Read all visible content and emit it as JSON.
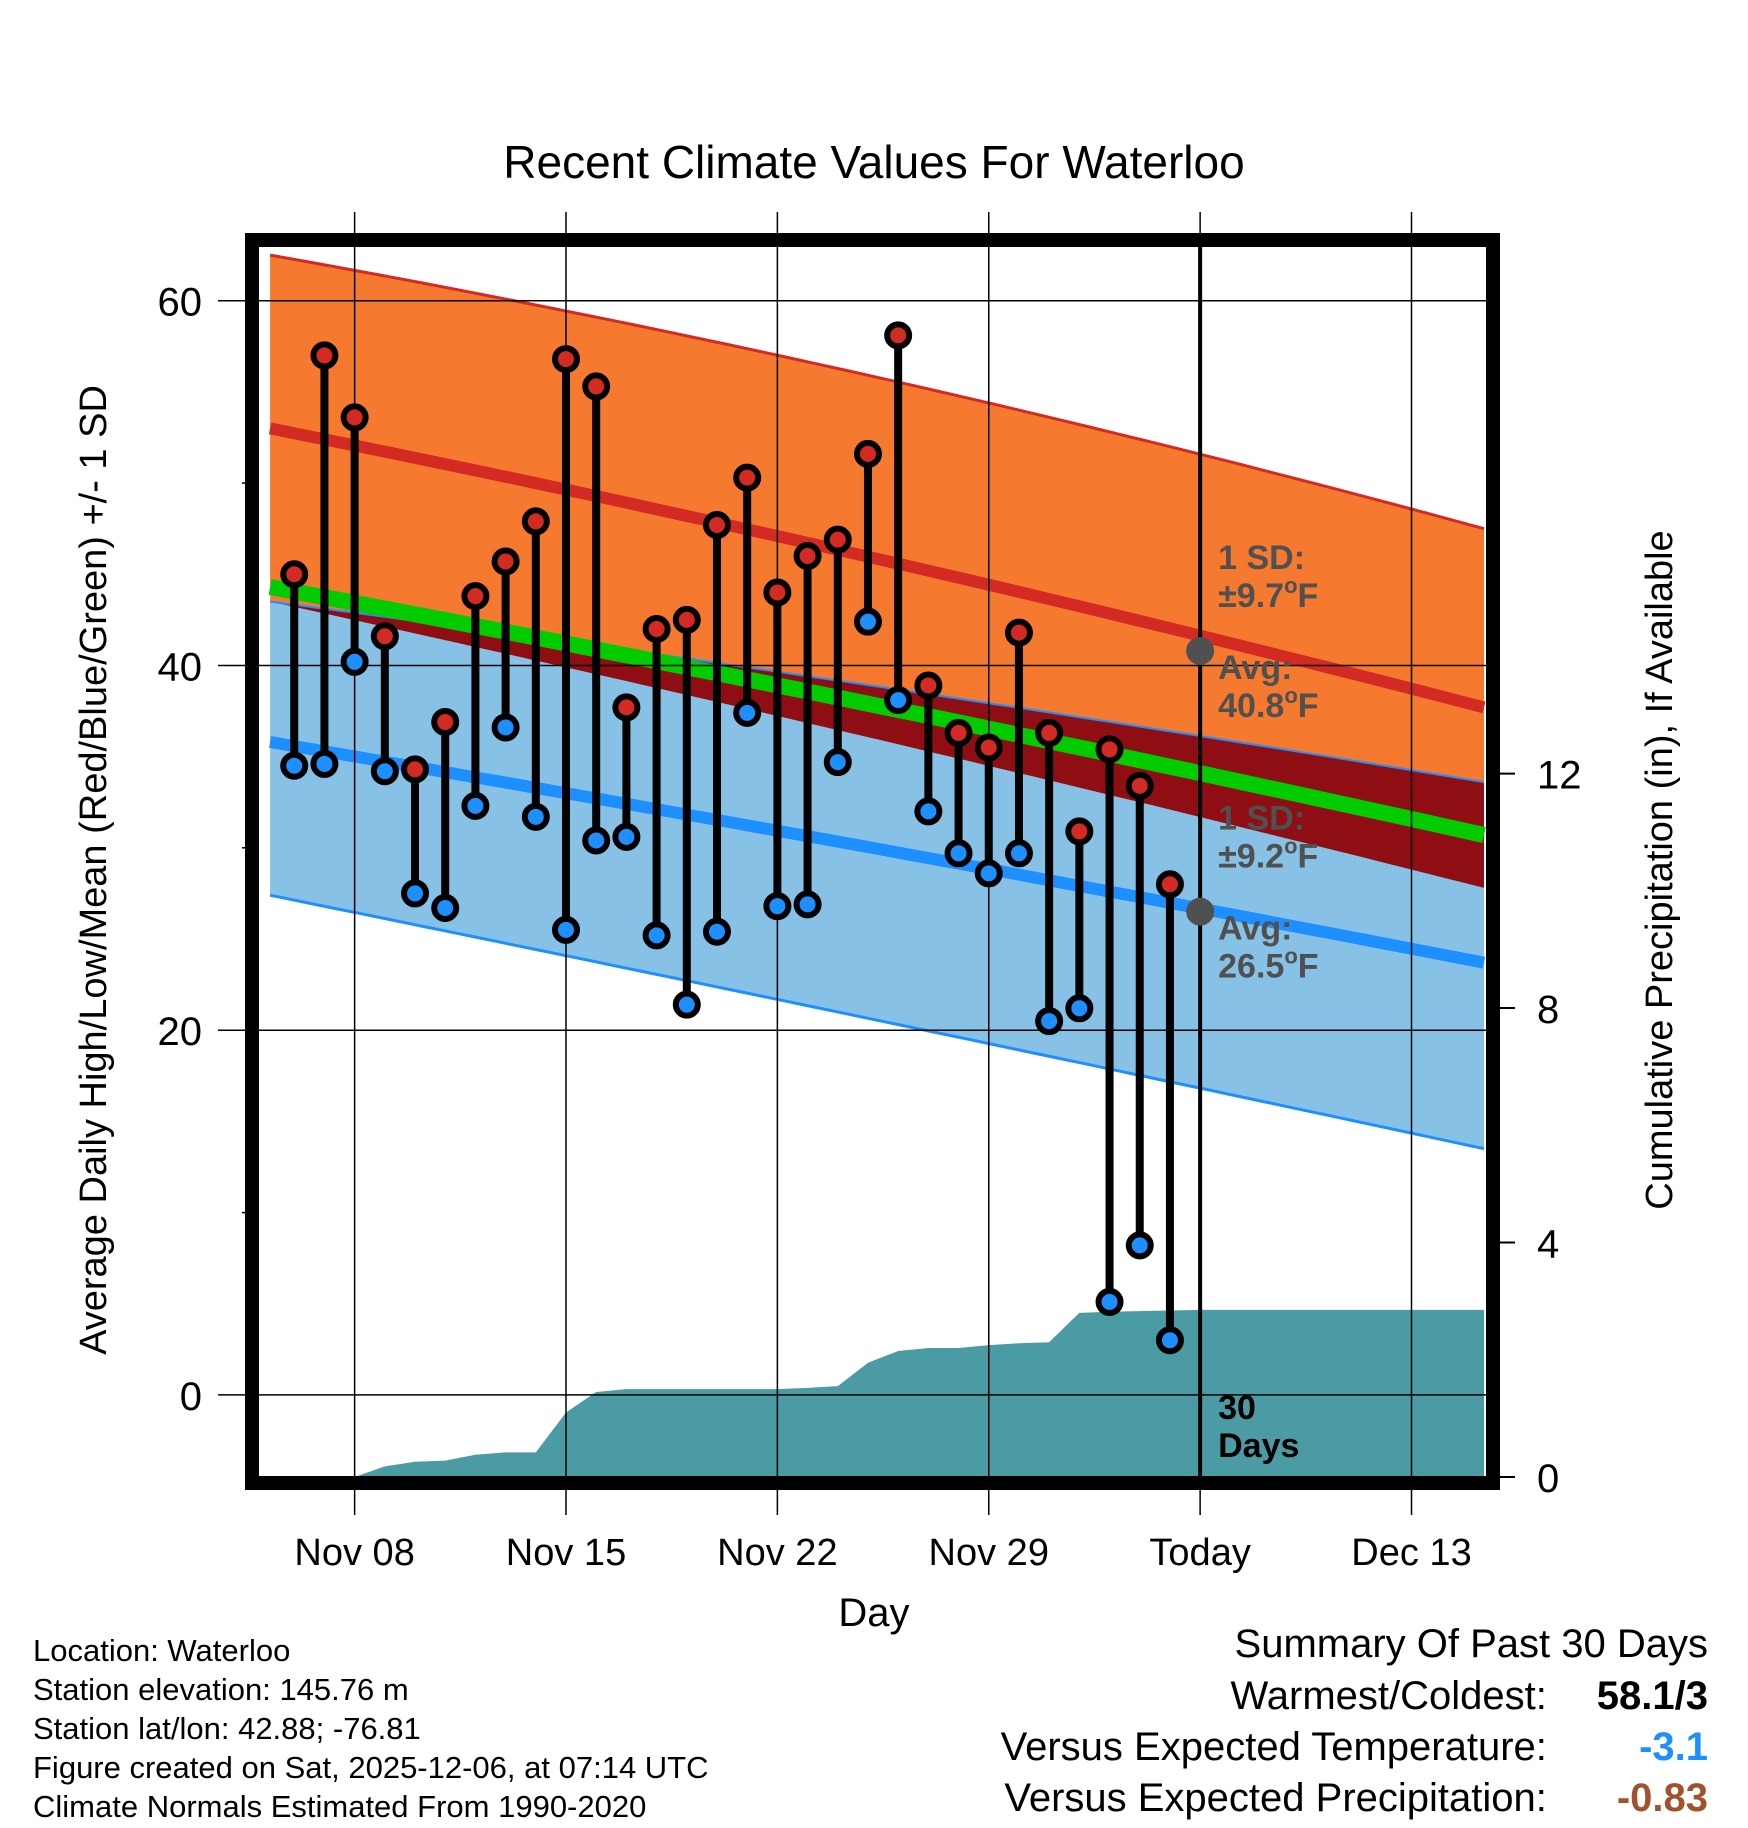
{
  "chart_data": {
    "type": "range",
    "title": "Recent Climate Values For Waterloo",
    "xlabel": "Day",
    "ylabel_left": "Average Daily High/Low/Mean (Red/Blue/Green) +/- 1 SD",
    "ylabel_right": "Cumulative Precipitation (in), If Available",
    "x_ticks": [
      "Nov 08",
      "Nov 15",
      "Nov 22",
      "Nov 29",
      "Today",
      "Dec 13"
    ],
    "x_tick_days": [
      8,
      15,
      22,
      29,
      36,
      43
    ],
    "x_range": [
      4.8,
      45.5
    ],
    "today_day": 36,
    "ylim_left": [
      -4.5,
      63
    ],
    "yticks_left": [
      0,
      20,
      40,
      60
    ],
    "yticks_left_minor": [
      10,
      30,
      50
    ],
    "ylim_right": [
      0,
      21
    ],
    "yticks_right": [
      0,
      4,
      8,
      12
    ],
    "normals": {
      "day_start": 5.2,
      "day_end": 45.4,
      "high_avg": [
        53.0,
        37.7
      ],
      "high_upper": [
        62.5,
        47.5
      ],
      "low_avg": [
        35.8,
        23.7
      ],
      "low_lower": [
        27.4,
        13.5
      ],
      "mean_avg": [
        44.3,
        30.7
      ],
      "mean_upper": [
        43.5,
        33.6
      ],
      "mean_lower": [
        43.5,
        27.8
      ]
    },
    "observed": {
      "days": [
        6,
        7,
        8,
        9,
        10,
        11,
        12,
        13,
        14,
        15,
        16,
        17,
        18,
        19,
        20,
        21,
        22,
        23,
        24,
        25,
        26,
        27,
        28,
        29,
        30,
        31,
        32,
        33,
        34,
        35
      ],
      "high": [
        45.0,
        57.0,
        53.6,
        41.6,
        34.3,
        36.9,
        43.8,
        45.7,
        47.9,
        56.8,
        55.3,
        37.7,
        42.0,
        42.5,
        47.7,
        50.3,
        44.0,
        46.0,
        46.9,
        51.6,
        58.1,
        38.9,
        36.3,
        35.5,
        41.8,
        36.3,
        30.9,
        35.4,
        33.4,
        28.0
      ],
      "low": [
        34.5,
        34.6,
        40.2,
        34.2,
        27.5,
        26.7,
        32.3,
        36.6,
        31.7,
        25.5,
        30.4,
        30.6,
        25.2,
        21.4,
        25.4,
        37.4,
        26.8,
        26.9,
        34.7,
        42.4,
        38.1,
        32.0,
        29.7,
        28.6,
        29.7,
        20.5,
        21.2,
        5.1,
        8.2,
        3.0
      ]
    },
    "today_markers": {
      "high_avg": 40.8,
      "low_avg": 26.5
    },
    "precip": {
      "days": [
        5.2,
        8,
        9,
        10,
        11,
        12,
        13,
        14,
        15,
        16,
        17,
        18,
        19,
        20,
        21,
        22,
        23,
        24,
        25,
        26,
        27,
        28,
        29,
        30,
        31,
        32,
        33,
        34,
        35,
        36,
        45.4
      ],
      "cumulative": [
        0,
        0,
        0.18,
        0.26,
        0.28,
        0.38,
        0.42,
        0.42,
        1.1,
        1.45,
        1.5,
        1.5,
        1.5,
        1.5,
        1.5,
        1.5,
        1.52,
        1.55,
        1.95,
        2.15,
        2.2,
        2.2,
        2.25,
        2.28,
        2.3,
        2.8,
        2.82,
        2.83,
        2.84,
        2.85,
        2.85
      ]
    },
    "annotations": {
      "high_sd_line1": "1 SD:",
      "high_sd_line2": "±9.7°F",
      "high_avg_line1": "Avg:",
      "high_avg_line2": "40.8°F",
      "low_sd_line1": "1 SD:",
      "low_sd_line2": "±9.2°F",
      "low_avg_line1": "Avg:",
      "low_avg_line2": "26.5°F",
      "days_line1": "30",
      "days_line2": "Days"
    },
    "colors": {
      "high_band": "#f57a30",
      "high_line": "#d42a24",
      "low_band": "#87c2e6",
      "low_line": "#1e8fff",
      "mean_band": "#8f0e13",
      "mean_line": "#00cc00",
      "precip": "#4a9ba3",
      "marker_high": "#d42a24",
      "marker_low": "#1e8fff",
      "annotation": "#505050"
    }
  },
  "metadata": {
    "location": "Location: Waterloo",
    "elevation": "Station elevation: 145.76 m",
    "latlon": "Station lat/lon: 42.88; -76.81",
    "created": "Figure created on Sat, 2025-12-06, at 07:14 UTC",
    "normals": "Climate Normals Estimated From 1990-2020"
  },
  "summary": {
    "title": "Summary Of Past 30 Days",
    "warmest_label": "Warmest/Coldest:",
    "warmest_value": "58.1/3",
    "temp_label": "Versus Expected Temperature:",
    "temp_value": "-3.1",
    "precip_label": "Versus Expected Precipitation:",
    "precip_value": "-0.83",
    "temp_color": "#1e8fff",
    "precip_color": "#a0522d"
  }
}
